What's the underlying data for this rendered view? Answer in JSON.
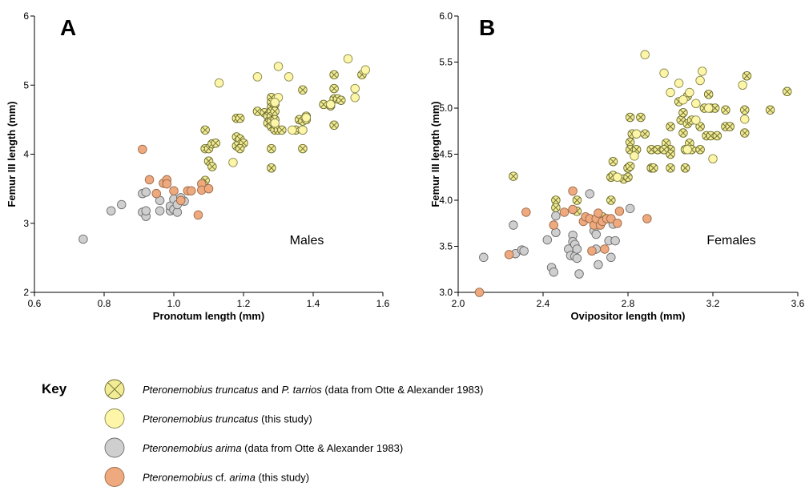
{
  "symbols": {
    "otte_yellow": {
      "fill": "#f2ec96",
      "stroke": "#6b6b2e",
      "cross": true
    },
    "study_yellow": {
      "fill": "#fdf6a8",
      "stroke": "#8a8a50",
      "cross": false
    },
    "otte_grey": {
      "fill": "#cfcfcf",
      "stroke": "#6d6d6d",
      "cross": false
    },
    "study_orange": {
      "fill": "#eeaa7e",
      "stroke": "#9c6a4a",
      "cross": false
    }
  },
  "chart_data": [
    {
      "type": "scatter",
      "panel": "A",
      "annotation": "Males",
      "xlabel": "Pronotum length (mm)",
      "ylabel": "Femur III length (mm)",
      "xlim": [
        0.6,
        1.6
      ],
      "ylim": [
        2,
        6
      ],
      "xticks": [
        "0.6",
        "0.8",
        "1.0",
        "1.2",
        "1.4",
        "1.6"
      ],
      "yticks": [
        "2",
        "3",
        "4",
        "5",
        "6"
      ],
      "series": [
        {
          "symbol": "otte_yellow",
          "points": [
            [
              1.09,
              4.35
            ],
            [
              1.09,
              4.08
            ],
            [
              1.1,
              4.08
            ],
            [
              1.1,
              3.9
            ],
            [
              1.11,
              4.15
            ],
            [
              1.11,
              3.82
            ],
            [
              1.09,
              3.62
            ],
            [
              1.12,
              4.16
            ],
            [
              1.18,
              4.52
            ],
            [
              1.19,
              4.52
            ],
            [
              1.18,
              4.25
            ],
            [
              1.19,
              4.22
            ],
            [
              1.18,
              4.12
            ],
            [
              1.2,
              4.16
            ],
            [
              1.19,
              4.08
            ],
            [
              1.24,
              4.62
            ],
            [
              1.26,
              4.6
            ],
            [
              1.27,
              4.55
            ],
            [
              1.27,
              4.45
            ],
            [
              1.28,
              4.82
            ],
            [
              1.28,
              4.75
            ],
            [
              1.28,
              4.68
            ],
            [
              1.28,
              4.62
            ],
            [
              1.28,
              4.55
            ],
            [
              1.28,
              4.48
            ],
            [
              1.28,
              4.4
            ],
            [
              1.29,
              4.72
            ],
            [
              1.29,
              4.62
            ],
            [
              1.29,
              4.5
            ],
            [
              1.29,
              4.35
            ],
            [
              1.3,
              4.35
            ],
            [
              1.31,
              4.35
            ],
            [
              1.28,
              4.08
            ],
            [
              1.28,
              3.8
            ],
            [
              1.35,
              4.35
            ],
            [
              1.36,
              4.5
            ],
            [
              1.37,
              4.48
            ],
            [
              1.37,
              4.35
            ],
            [
              1.37,
              4.08
            ],
            [
              1.38,
              4.55
            ],
            [
              1.38,
              4.5
            ],
            [
              1.37,
              4.93
            ],
            [
              1.43,
              4.72
            ],
            [
              1.45,
              4.7
            ],
            [
              1.46,
              4.8
            ],
            [
              1.46,
              4.95
            ],
            [
              1.46,
              5.15
            ],
            [
              1.47,
              4.8
            ],
            [
              1.48,
              4.78
            ],
            [
              1.46,
              4.42
            ],
            [
              1.54,
              5.15
            ]
          ]
        },
        {
          "symbol": "study_yellow",
          "points": [
            [
              1.13,
              5.03
            ],
            [
              1.24,
              5.12
            ],
            [
              1.3,
              5.27
            ],
            [
              1.33,
              5.12
            ],
            [
              1.3,
              4.82
            ],
            [
              1.29,
              4.75
            ],
            [
              1.34,
              4.35
            ],
            [
              1.38,
              4.53
            ],
            [
              1.17,
              3.88
            ],
            [
              1.5,
              5.38
            ],
            [
              1.55,
              5.22
            ],
            [
              1.52,
              4.95
            ],
            [
              1.52,
              4.82
            ],
            [
              1.45,
              4.72
            ],
            [
              1.37,
              4.35
            ],
            [
              1.29,
              4.45
            ]
          ]
        },
        {
          "symbol": "otte_grey",
          "points": [
            [
              0.74,
              2.77
            ],
            [
              0.82,
              3.18
            ],
            [
              0.85,
              3.27
            ],
            [
              0.91,
              3.43
            ],
            [
              0.92,
              3.45
            ],
            [
              0.91,
              3.16
            ],
            [
              0.92,
              3.1
            ],
            [
              0.92,
              3.18
            ],
            [
              0.96,
              3.33
            ],
            [
              0.96,
              3.18
            ],
            [
              0.99,
              3.18
            ],
            [
              0.99,
              3.25
            ],
            [
              1.0,
              3.35
            ],
            [
              1.0,
              3.2
            ],
            [
              1.01,
              3.16
            ],
            [
              1.01,
              3.27
            ],
            [
              1.03,
              3.32
            ],
            [
              1.02,
              3.37
            ]
          ]
        },
        {
          "symbol": "study_orange",
          "points": [
            [
              0.91,
              4.07
            ],
            [
              0.93,
              3.63
            ],
            [
              0.95,
              3.43
            ],
            [
              0.97,
              3.58
            ],
            [
              0.98,
              3.63
            ],
            [
              0.98,
              3.57
            ],
            [
              1.0,
              3.47
            ],
            [
              1.02,
              3.33
            ],
            [
              1.04,
              3.47
            ],
            [
              1.05,
              3.47
            ],
            [
              1.07,
              3.12
            ],
            [
              1.08,
              3.57
            ],
            [
              1.08,
              3.48
            ],
            [
              1.1,
              3.5
            ]
          ]
        }
      ]
    },
    {
      "type": "scatter",
      "panel": "B",
      "annotation": "Females",
      "xlabel": "Ovipositor length (mm)",
      "ylabel": "Femur III length (mm)",
      "xlim": [
        2.0,
        3.6
      ],
      "ylim": [
        3.0,
        6.0
      ],
      "xticks": [
        "2.0",
        "2.4",
        "2.8",
        "3.2",
        "3.6"
      ],
      "yticks": [
        "3.0",
        "3.5",
        "4.0",
        "4.5",
        "5.0",
        "5.5",
        "6.0"
      ],
      "series": [
        {
          "symbol": "otte_yellow",
          "points": [
            [
              2.26,
              4.26
            ],
            [
              2.46,
              4.0
            ],
            [
              2.46,
              3.92
            ],
            [
              2.56,
              4.0
            ],
            [
              2.56,
              3.88
            ],
            [
              2.68,
              3.82
            ],
            [
              2.72,
              4.0
            ],
            [
              2.72,
              4.25
            ],
            [
              2.73,
              4.27
            ],
            [
              2.73,
              4.42
            ],
            [
              2.78,
              4.23
            ],
            [
              2.8,
              4.25
            ],
            [
              2.8,
              4.35
            ],
            [
              2.81,
              4.37
            ],
            [
              2.81,
              4.63
            ],
            [
              2.81,
              4.55
            ],
            [
              2.82,
              4.72
            ],
            [
              2.84,
              4.72
            ],
            [
              2.84,
              4.55
            ],
            [
              2.86,
              4.9
            ],
            [
              2.88,
              4.72
            ],
            [
              2.91,
              4.55
            ],
            [
              2.91,
              4.35
            ],
            [
              2.92,
              4.35
            ],
            [
              2.94,
              4.55
            ],
            [
              2.97,
              4.55
            ],
            [
              2.98,
              4.62
            ],
            [
              3.0,
              4.8
            ],
            [
              3.0,
              4.55
            ],
            [
              3.0,
              4.5
            ],
            [
              3.0,
              4.35
            ],
            [
              3.04,
              5.07
            ],
            [
              3.05,
              4.87
            ],
            [
              3.06,
              4.95
            ],
            [
              3.06,
              4.73
            ],
            [
              3.07,
              4.55
            ],
            [
              3.07,
              4.35
            ],
            [
              3.08,
              5.13
            ],
            [
              3.08,
              4.83
            ],
            [
              3.09,
              4.62
            ],
            [
              3.1,
              4.87
            ],
            [
              3.1,
              4.55
            ],
            [
              3.14,
              4.8
            ],
            [
              3.14,
              4.55
            ],
            [
              3.16,
              5.0
            ],
            [
              3.17,
              4.7
            ],
            [
              3.18,
              5.15
            ],
            [
              3.19,
              5.0
            ],
            [
              3.19,
              4.7
            ],
            [
              3.21,
              5.0
            ],
            [
              3.22,
              4.7
            ],
            [
              3.26,
              4.98
            ],
            [
              3.26,
              4.8
            ],
            [
              3.28,
              4.8
            ],
            [
              3.35,
              4.98
            ],
            [
              3.35,
              4.73
            ],
            [
              3.36,
              5.35
            ],
            [
              3.47,
              4.98
            ],
            [
              3.55,
              5.18
            ],
            [
              2.81,
              4.9
            ],
            [
              2.97,
              4.55
            ],
            [
              3.07,
              4.35
            ]
          ]
        },
        {
          "symbol": "study_yellow",
          "points": [
            [
              2.88,
              5.58
            ],
            [
              2.97,
              5.38
            ],
            [
              3.0,
              5.17
            ],
            [
              3.04,
              5.27
            ],
            [
              3.09,
              5.17
            ],
            [
              3.06,
              5.09
            ],
            [
              3.12,
              5.05
            ],
            [
              3.12,
              4.87
            ],
            [
              3.14,
              5.3
            ],
            [
              3.15,
              5.4
            ],
            [
              3.18,
              5.0
            ],
            [
              3.34,
              5.25
            ],
            [
              3.35,
              4.88
            ],
            [
              3.2,
              4.45
            ],
            [
              3.08,
              4.55
            ],
            [
              2.83,
              4.48
            ],
            [
              2.84,
              4.72
            ],
            [
              2.75,
              4.25
            ]
          ]
        },
        {
          "symbol": "otte_grey",
          "points": [
            [
              2.12,
              3.38
            ],
            [
              2.26,
              3.73
            ],
            [
              2.27,
              3.42
            ],
            [
              2.3,
              3.46
            ],
            [
              2.31,
              3.45
            ],
            [
              2.42,
              3.57
            ],
            [
              2.44,
              3.27
            ],
            [
              2.45,
              3.22
            ],
            [
              2.46,
              3.83
            ],
            [
              2.46,
              3.65
            ],
            [
              2.52,
              3.47
            ],
            [
              2.53,
              3.4
            ],
            [
              2.54,
              3.62
            ],
            [
              2.54,
              3.55
            ],
            [
              2.55,
              3.52
            ],
            [
              2.55,
              3.39
            ],
            [
              2.56,
              3.47
            ],
            [
              2.56,
              3.37
            ],
            [
              2.57,
              3.2
            ],
            [
              2.62,
              4.07
            ],
            [
              2.64,
              3.67
            ],
            [
              2.65,
              3.63
            ],
            [
              2.65,
              3.47
            ],
            [
              2.66,
              3.3
            ],
            [
              2.71,
              3.56
            ],
            [
              2.72,
              3.38
            ],
            [
              2.73,
              3.74
            ],
            [
              2.74,
              3.56
            ],
            [
              2.81,
              3.91
            ]
          ]
        },
        {
          "symbol": "study_orange",
          "points": [
            [
              2.1,
              3.0
            ],
            [
              2.24,
              3.41
            ],
            [
              2.32,
              3.87
            ],
            [
              2.45,
              3.73
            ],
            [
              2.5,
              3.87
            ],
            [
              2.54,
              4.1
            ],
            [
              2.54,
              3.9
            ],
            [
              2.59,
              3.77
            ],
            [
              2.6,
              3.82
            ],
            [
              2.62,
              3.8
            ],
            [
              2.64,
              3.73
            ],
            [
              2.65,
              3.8
            ],
            [
              2.66,
              3.86
            ],
            [
              2.67,
              3.73
            ],
            [
              2.68,
              3.77
            ],
            [
              2.69,
              3.47
            ],
            [
              2.7,
              3.8
            ],
            [
              2.72,
              3.8
            ],
            [
              2.75,
              3.75
            ],
            [
              2.76,
              3.88
            ],
            [
              2.89,
              3.8
            ],
            [
              2.63,
              3.45
            ]
          ]
        }
      ]
    }
  ],
  "key": {
    "title": "Key",
    "items": [
      {
        "symbol": "otte_yellow",
        "parts": [
          {
            "text": "Pteronemobius truncatus",
            "italic": true
          },
          {
            "text": " and ",
            "italic": false
          },
          {
            "text": "P. tarrios",
            "italic": true
          },
          {
            "text": " (data from Otte & Alexander 1983)",
            "italic": false
          }
        ]
      },
      {
        "symbol": "study_yellow",
        "parts": [
          {
            "text": "Pteronemobius truncatus",
            "italic": true
          },
          {
            "text": " (this study)",
            "italic": false
          }
        ]
      },
      {
        "symbol": "otte_grey",
        "parts": [
          {
            "text": "Pteronemobius arima",
            "italic": true
          },
          {
            "text": " (data from Otte & Alexander 1983)",
            "italic": false
          }
        ]
      },
      {
        "symbol": "study_orange",
        "parts": [
          {
            "text": "Pteronemobius",
            "italic": true
          },
          {
            "text": " cf. ",
            "italic": false
          },
          {
            "text": "arima",
            "italic": true
          },
          {
            "text": " (this study)",
            "italic": false
          }
        ]
      }
    ]
  }
}
